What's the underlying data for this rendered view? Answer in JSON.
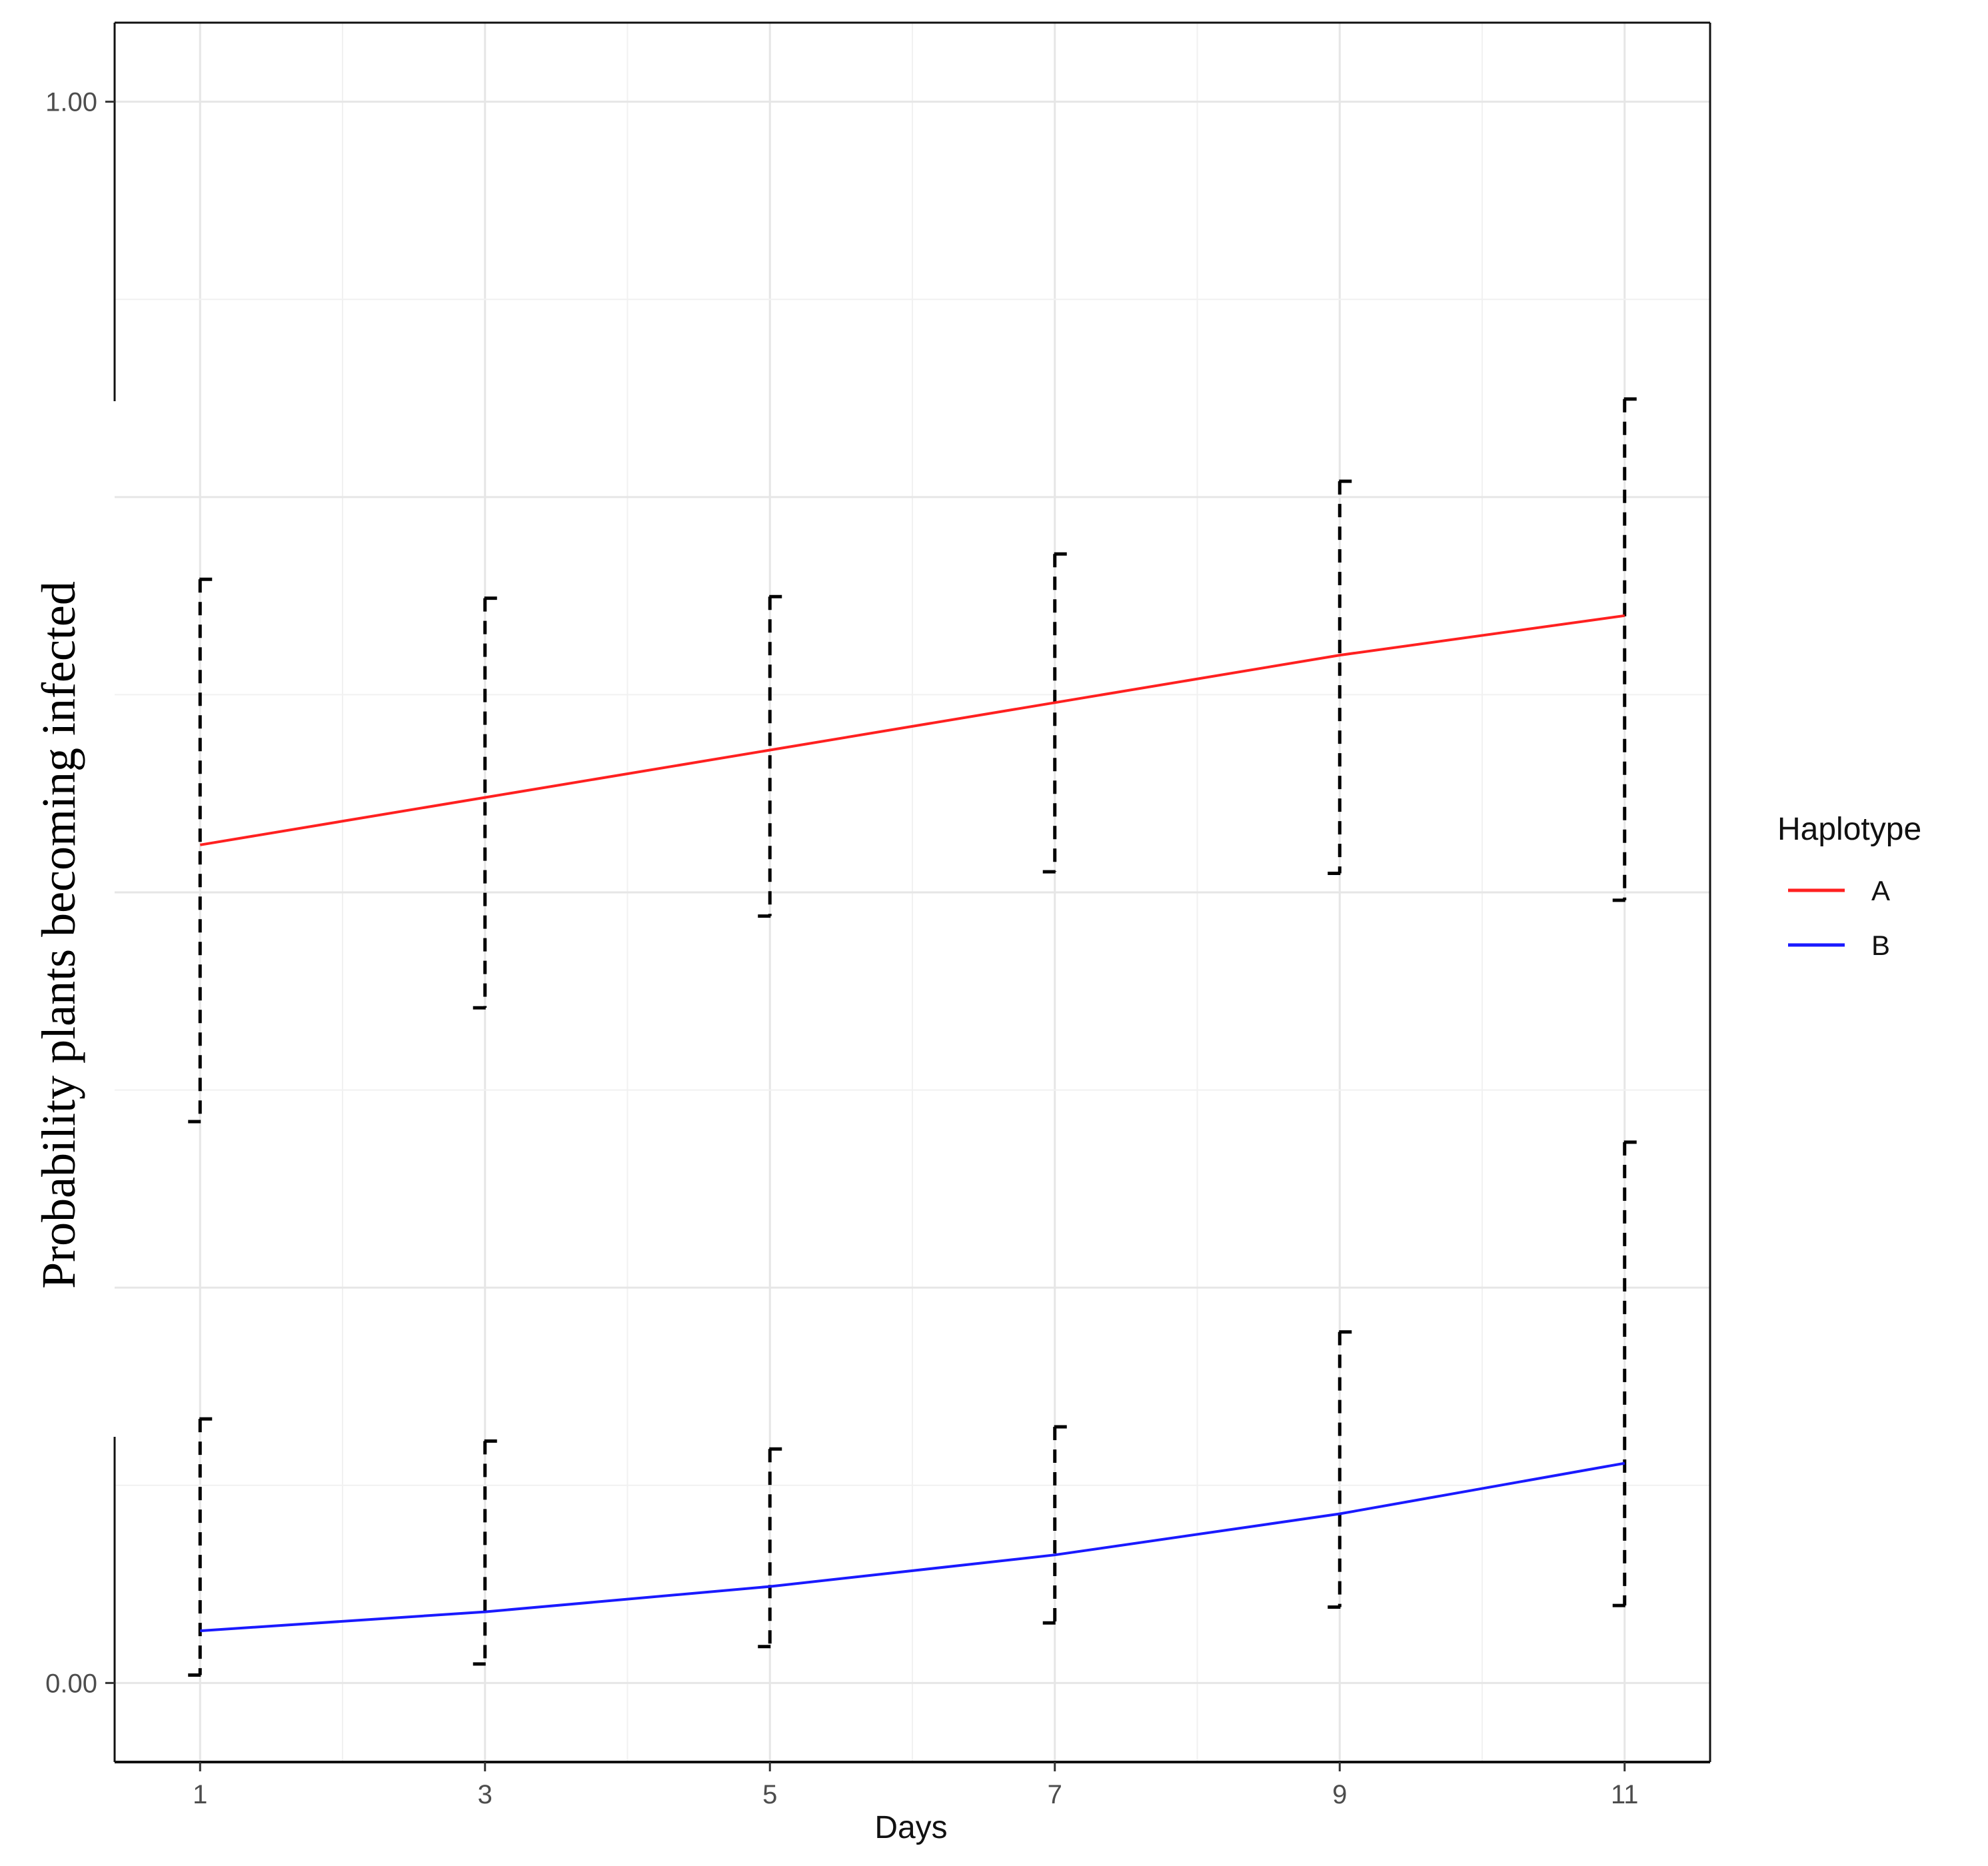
{
  "chart_data": {
    "type": "line",
    "title": "",
    "xlabel": "Days",
    "ylabel": "Probability plants becoming infected",
    "x": [
      1,
      3,
      5,
      7,
      9,
      11
    ],
    "xticks": [
      "1",
      "3",
      "5",
      "7",
      "9",
      "11"
    ],
    "yticks": [
      "1.00",
      "0.00"
    ],
    "ytick_values": [
      1.0,
      0.0
    ],
    "xlim": [
      0.4,
      11.6
    ],
    "ylim": [
      -0.05,
      1.05
    ],
    "grid": true,
    "legend": {
      "title": "Haplotype",
      "position": "right",
      "entries": [
        "A",
        "B"
      ]
    },
    "series": [
      {
        "name": "A",
        "color": "#ff2020",
        "values": [
          0.53,
          0.56,
          0.59,
          0.62,
          0.65,
          0.675
        ],
        "error_low": [
          0.355,
          0.427,
          0.485,
          0.513,
          0.512,
          0.495
        ],
        "error_high": [
          0.698,
          0.686,
          0.687,
          0.714,
          0.76,
          0.812
        ]
      },
      {
        "name": "B",
        "color": "#1a1aff",
        "values": [
          0.033,
          0.045,
          0.061,
          0.081,
          0.107,
          0.139
        ],
        "error_low": [
          0.005,
          0.012,
          0.023,
          0.038,
          0.048,
          0.049
        ],
        "error_high": [
          0.167,
          0.153,
          0.148,
          0.162,
          0.222,
          0.342
        ]
      }
    ],
    "error_bar_style": "dashed black"
  }
}
